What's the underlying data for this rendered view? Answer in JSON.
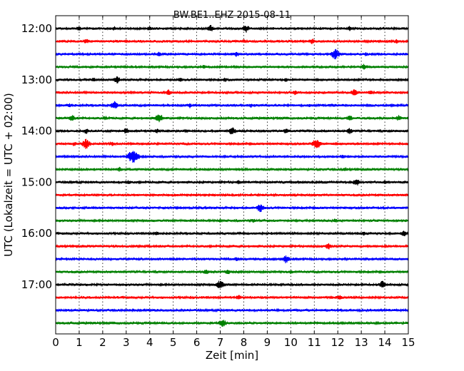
{
  "chart_data": {
    "type": "line",
    "title": "BW.BE1..EHZ 2015-08-11",
    "xlabel": "Zeit  [min]",
    "ylabel": "UTC (Lokalzeit = UTC + 02:00)",
    "xlim": [
      0,
      15
    ],
    "x_ticks": [
      "0",
      "1",
      "2",
      "3",
      "4",
      "5",
      "6",
      "7",
      "8",
      "9",
      "10",
      "11",
      "12",
      "13",
      "14",
      "15"
    ],
    "y_ticks": [
      {
        "label": "12:00",
        "trace": 0
      },
      {
        "label": "13:00",
        "trace": 4
      },
      {
        "label": "14:00",
        "trace": 8
      },
      {
        "label": "15:00",
        "trace": 12
      },
      {
        "label": "16:00",
        "trace": 16
      },
      {
        "label": "17:00",
        "trace": 20
      }
    ],
    "grid": "vertical dotted at each minute",
    "trace_interval_min": 15,
    "trace_colors": [
      "#000000",
      "#ff0000",
      "#0000ff",
      "#008000"
    ],
    "traces": [
      {
        "start": "12:00",
        "events": [
          [
            1,
            0.4
          ],
          [
            2.5,
            0.3
          ],
          [
            4,
            0.35
          ],
          [
            6.6,
            0.6
          ],
          [
            8.1,
            0.7
          ],
          [
            12.5,
            0.4
          ]
        ]
      },
      {
        "start": "12:15",
        "events": [
          [
            1.3,
            0.4
          ],
          [
            8,
            0.3
          ],
          [
            10.9,
            0.5
          ],
          [
            14.5,
            0.3
          ]
        ]
      },
      {
        "start": "12:30",
        "events": [
          [
            4.4,
            0.35
          ],
          [
            7.7,
            0.4
          ],
          [
            11.9,
            1.0
          ],
          [
            13.2,
            0.3
          ]
        ]
      },
      {
        "start": "12:45",
        "events": [
          [
            6.3,
            0.3
          ],
          [
            13.1,
            0.5
          ]
        ]
      },
      {
        "start": "13:00",
        "events": [
          [
            1.6,
            0.35
          ],
          [
            2.6,
            0.7
          ],
          [
            5.3,
            0.3
          ],
          [
            7.2,
            0.35
          ],
          [
            9.8,
            0.3
          ]
        ]
      },
      {
        "start": "13:15",
        "events": [
          [
            4.8,
            0.5
          ],
          [
            10.2,
            0.4
          ],
          [
            12.7,
            0.7
          ],
          [
            13.4,
            0.4
          ]
        ]
      },
      {
        "start": "13:30",
        "events": [
          [
            0.6,
            0.3
          ],
          [
            2.5,
            0.8
          ],
          [
            5.7,
            0.35
          ],
          [
            8.3,
            0.3
          ],
          [
            10.8,
            0.3
          ]
        ]
      },
      {
        "start": "13:45",
        "events": [
          [
            0.7,
            0.6
          ],
          [
            2.1,
            0.4
          ],
          [
            4.4,
            0.9
          ],
          [
            12.5,
            0.6
          ],
          [
            14.6,
            0.5
          ]
        ]
      },
      {
        "start": "14:00",
        "events": [
          [
            1.3,
            0.4
          ],
          [
            3,
            0.5
          ],
          [
            4.3,
            0.45
          ],
          [
            7.5,
            0.8
          ],
          [
            9.8,
            0.45
          ],
          [
            12.5,
            0.5
          ]
        ]
      },
      {
        "start": "14:15",
        "events": [
          [
            0.8,
            0.35
          ],
          [
            1.3,
            1.0
          ],
          [
            2.4,
            0.4
          ],
          [
            11.1,
            1.1
          ]
        ]
      },
      {
        "start": "14:30",
        "events": [
          [
            3.3,
            1.5
          ],
          [
            12.2,
            0.3
          ]
        ]
      },
      {
        "start": "14:45",
        "events": [
          [
            2.7,
            0.35
          ],
          [
            12.3,
            0.3
          ]
        ]
      },
      {
        "start": "15:00",
        "events": [
          [
            3.1,
            0.3
          ],
          [
            7.8,
            0.3
          ],
          [
            12.8,
            0.7
          ],
          [
            14,
            0.3
          ]
        ]
      },
      {
        "start": "15:15",
        "events": [
          [
            6,
            0.25
          ]
        ]
      },
      {
        "start": "15:30",
        "events": [
          [
            8.7,
            0.8
          ]
        ]
      },
      {
        "start": "15:45",
        "events": [
          [
            7,
            0.35
          ],
          [
            8.4,
            0.3
          ],
          [
            11.9,
            0.35
          ]
        ]
      },
      {
        "start": "16:00",
        "events": [
          [
            4.3,
            0.3
          ],
          [
            13.1,
            0.3
          ],
          [
            14.8,
            0.6
          ]
        ]
      },
      {
        "start": "16:15",
        "events": [
          [
            11.6,
            0.6
          ]
        ]
      },
      {
        "start": "16:30",
        "events": [
          [
            9.8,
            0.8
          ],
          [
            7.7,
            0.3
          ]
        ]
      },
      {
        "start": "16:45",
        "events": [
          [
            6.4,
            0.5
          ],
          [
            7.3,
            0.5
          ],
          [
            10,
            0.3
          ]
        ]
      },
      {
        "start": "17:00",
        "events": [
          [
            7,
            0.9
          ],
          [
            13.9,
            0.7
          ]
        ]
      },
      {
        "start": "17:15",
        "events": [
          [
            7.8,
            0.45
          ],
          [
            12.1,
            0.45
          ]
        ]
      },
      {
        "start": "17:30",
        "events": []
      },
      {
        "start": "17:45",
        "events": [
          [
            7.1,
            0.8
          ]
        ]
      }
    ]
  }
}
